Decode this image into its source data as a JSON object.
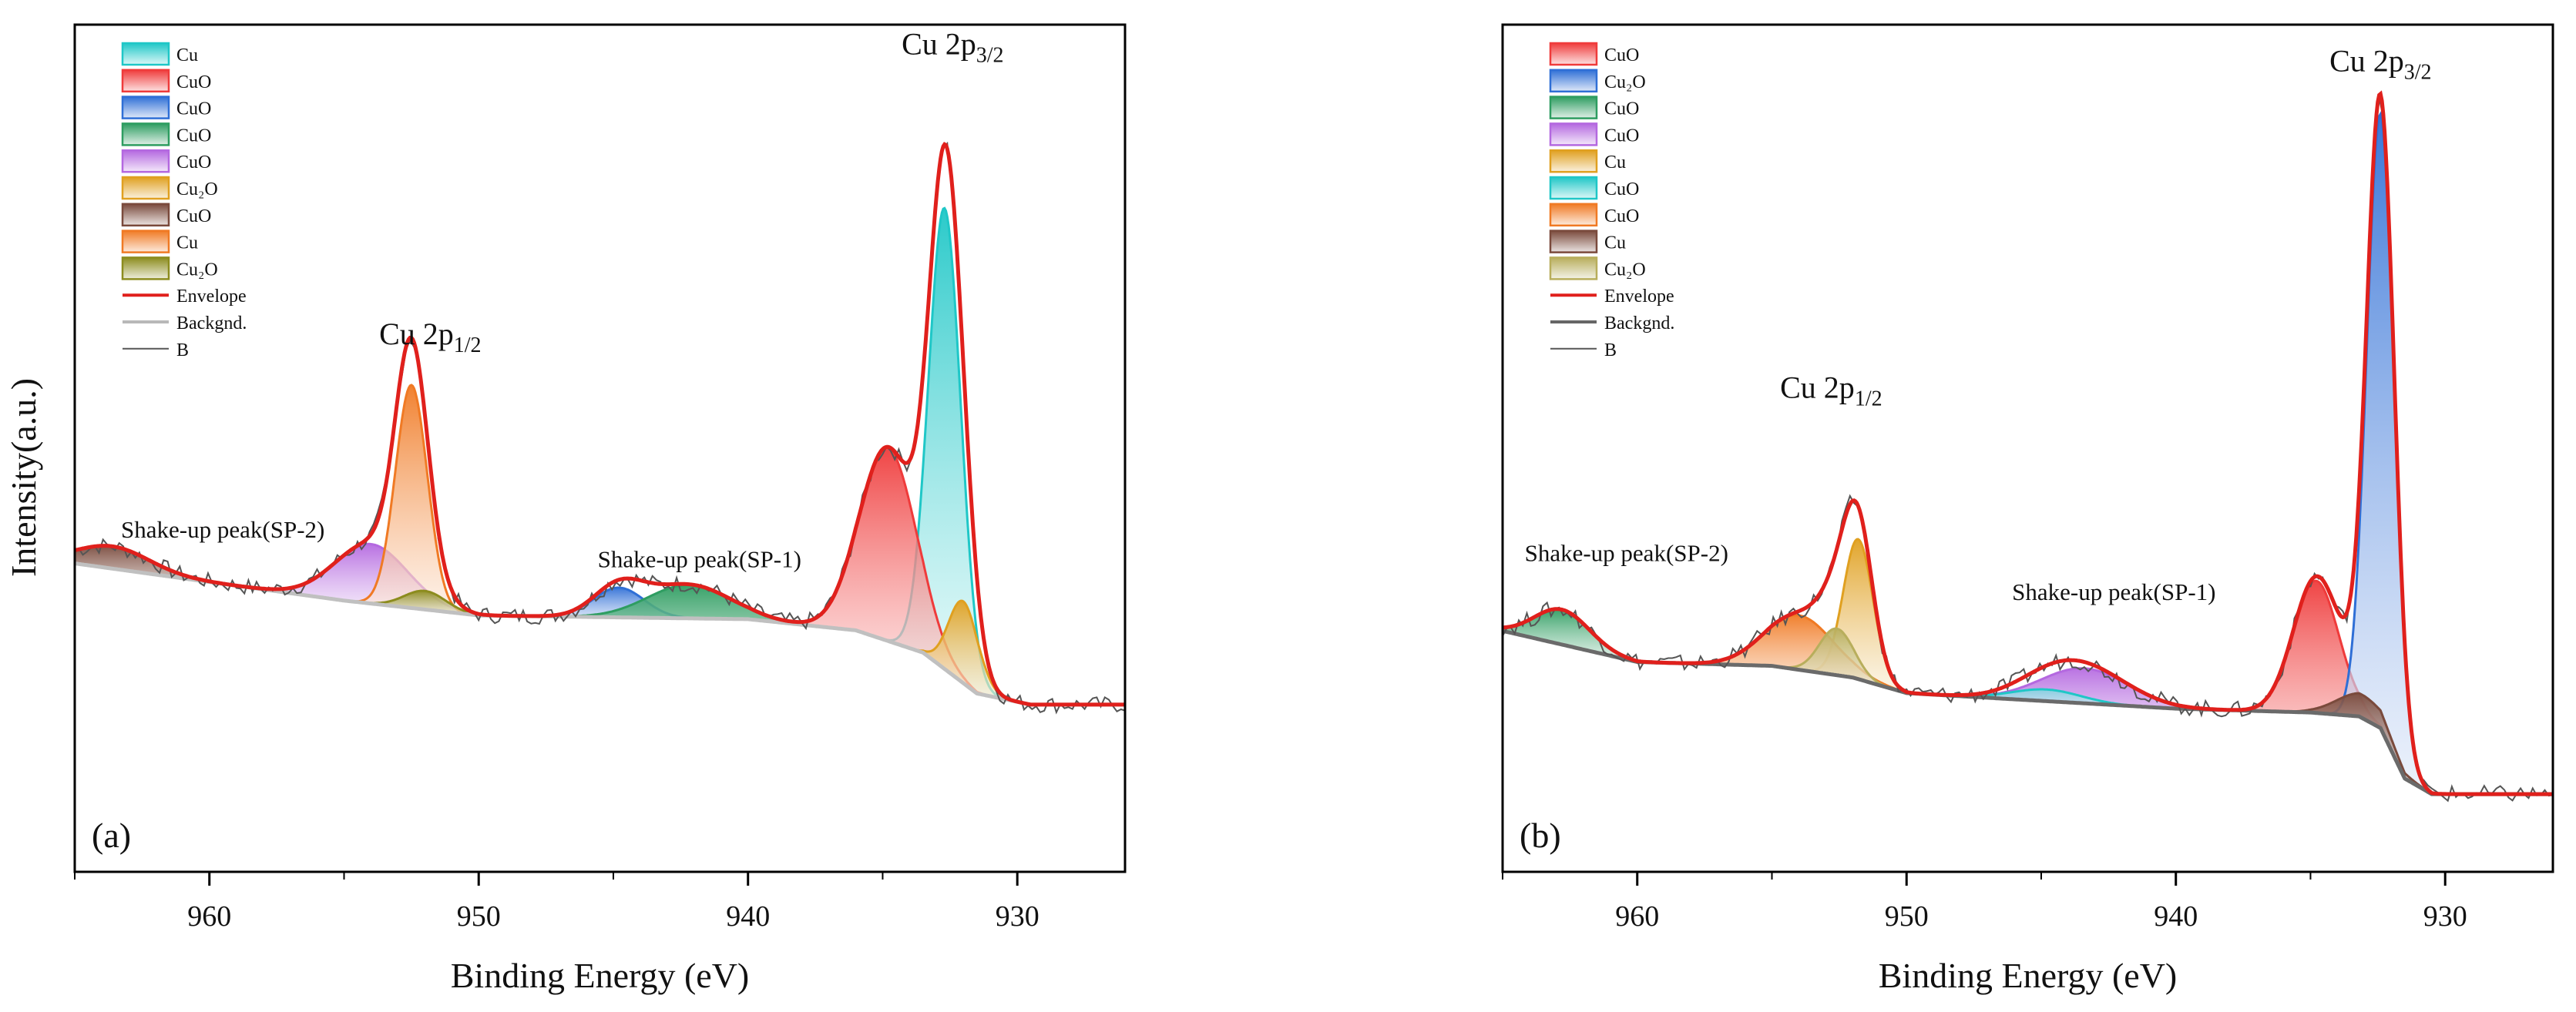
{
  "shared": {
    "y_axis_label": "Intensity(a.u.)",
    "x_axis_label": "Binding Energy (eV)"
  },
  "chart_data": [
    {
      "type": "area",
      "panel_label": "(a)",
      "xlabel": "Binding Energy (eV)",
      "ylabel": "Intensity(a.u.)",
      "xlim": [
        965,
        926
      ],
      "ylim": [
        -0.14,
        1.0
      ],
      "x_reversed": true,
      "xticks": [
        960,
        950,
        940,
        930
      ],
      "grid": false,
      "legend_position": "top-left",
      "annotations": [
        {
          "text": "Shake-up peak(SP-2)",
          "x": 959.5,
          "y": 0.31
        },
        {
          "text": "Cu 2p",
          "sub": "1/2",
          "x": 951.8,
          "y": 0.57
        },
        {
          "text": "Shake-up peak(SP-1)",
          "x": 941.8,
          "y": 0.27
        },
        {
          "text": "Cu 2p",
          "sub": "3/2",
          "x": 932.4,
          "y": 0.96
        }
      ],
      "background": {
        "points": [
          [
            965,
            0.275
          ],
          [
            958,
            0.24
          ],
          [
            955,
            0.225
          ],
          [
            950,
            0.205
          ],
          [
            940,
            0.2
          ],
          [
            936,
            0.185
          ],
          [
            933.5,
            0.155
          ],
          [
            931.5,
            0.1
          ],
          [
            929.5,
            0.085
          ],
          [
            926,
            0.085
          ]
        ]
      },
      "peaks": [
        {
          "name": "Cu",
          "center": 932.7,
          "height": 0.62,
          "fwhm": 1.4,
          "color": "#1fc7c7"
        },
        {
          "name": "CuO",
          "center": 934.8,
          "height": 0.26,
          "fwhm": 2.5,
          "color": "#ef3b3b"
        },
        {
          "name": "CuO",
          "center": 944.8,
          "height": 0.04,
          "fwhm": 2.2,
          "color": "#2f6fd6"
        },
        {
          "name": "CuO",
          "center": 942.2,
          "height": 0.045,
          "fwhm": 3.6,
          "color": "#2e9d61"
        },
        {
          "name": "CuO",
          "center": 954.0,
          "height": 0.08,
          "fwhm": 3.2,
          "color": "#b468e0"
        },
        {
          "name": "Cu₂O",
          "center": 932.0,
          "height": 0.11,
          "fwhm": 1.3,
          "color": "#e0a020"
        },
        {
          "name": "CuO",
          "center": 963.6,
          "height": 0.03,
          "fwhm": 3.2,
          "color": "#7a4a3c"
        },
        {
          "name": "Cu",
          "center": 952.5,
          "height": 0.3,
          "fwhm": 1.4,
          "color": "#f07a24"
        },
        {
          "name": "Cu₂O",
          "center": 952.0,
          "height": 0.025,
          "fwhm": 1.8,
          "color": "#8c8c1e"
        }
      ],
      "legend": [
        {
          "label": "Cu",
          "kind": "fill",
          "color": "#1fc7c7"
        },
        {
          "label": "CuO",
          "kind": "fill",
          "color": "#ef3b3b"
        },
        {
          "label": "CuO",
          "kind": "fill",
          "color": "#2f6fd6"
        },
        {
          "label": "CuO",
          "kind": "fill",
          "color": "#2e9d61"
        },
        {
          "label": "CuO",
          "kind": "fill",
          "color": "#b468e0"
        },
        {
          "label": "Cu₂O",
          "kind": "fill",
          "color": "#e0a020"
        },
        {
          "label": "CuO",
          "kind": "fill",
          "color": "#7a4a3c"
        },
        {
          "label": "Cu",
          "kind": "fill",
          "color": "#f07a24"
        },
        {
          "label": "Cu₂O",
          "kind": "fill",
          "color": "#8c8c1e"
        },
        {
          "label": "Envelope",
          "kind": "line",
          "color": "#e0201c"
        },
        {
          "label": "Backgnd.",
          "kind": "line",
          "color": "#b8b8b8"
        },
        {
          "label": "B",
          "kind": "line",
          "color": "#555555"
        }
      ],
      "colors": {
        "envelope": "#e0201c",
        "background": "#c0c0c0",
        "raw": "#555555"
      }
    },
    {
      "type": "area",
      "panel_label": "(b)",
      "xlabel": "Binding Energy (eV)",
      "ylabel": "Intensity(a.u.)",
      "xlim": [
        965,
        926
      ],
      "ylim": [
        -0.09,
        1.0
      ],
      "x_reversed": true,
      "xticks": [
        960,
        950,
        940,
        930
      ],
      "grid": false,
      "legend_position": "top-left",
      "annotations": [
        {
          "text": "Shake-up peak(SP-2)",
          "x": 960.4,
          "y": 0.31
        },
        {
          "text": "Cu 2p",
          "sub": "1/2",
          "x": 952.8,
          "y": 0.52
        },
        {
          "text": "Shake-up peak(SP-1)",
          "x": 942.3,
          "y": 0.26
        },
        {
          "text": "Cu 2p",
          "sub": "3/2",
          "x": 932.4,
          "y": 0.94
        }
      ],
      "background": {
        "points": [
          [
            965,
            0.22
          ],
          [
            960,
            0.18
          ],
          [
            955,
            0.175
          ],
          [
            952,
            0.16
          ],
          [
            950,
            0.14
          ],
          [
            945,
            0.13
          ],
          [
            940,
            0.12
          ],
          [
            935,
            0.115
          ],
          [
            933.2,
            0.11
          ],
          [
            932.4,
            0.095
          ],
          [
            931.5,
            0.03
          ],
          [
            930.5,
            0.01
          ],
          [
            926,
            0.01
          ]
        ]
      },
      "peaks": [
        {
          "name": "CuO",
          "center": 934.8,
          "height": 0.17,
          "fwhm": 2.0,
          "color": "#ef3b3b"
        },
        {
          "name": "Cu₂O",
          "center": 932.4,
          "height": 0.79,
          "fwhm": 1.2,
          "color": "#2f6fd6"
        },
        {
          "name": "CuO",
          "center": 962.8,
          "height": 0.045,
          "fwhm": 2.4,
          "color": "#2e9d61"
        },
        {
          "name": "CuO",
          "center": 943.4,
          "height": 0.045,
          "fwhm": 3.8,
          "color": "#b468e0"
        },
        {
          "name": "Cu",
          "center": 951.8,
          "height": 0.18,
          "fwhm": 1.3,
          "color": "#e0a020"
        },
        {
          "name": "CuO",
          "center": 944.8,
          "height": 0.015,
          "fwhm": 3.0,
          "color": "#1fc7c7"
        },
        {
          "name": "CuO",
          "center": 954.0,
          "height": 0.07,
          "fwhm": 3.0,
          "color": "#f07a24"
        },
        {
          "name": "Cu",
          "center": 933.1,
          "height": 0.03,
          "fwhm": 2.2,
          "color": "#7a4a3c"
        },
        {
          "name": "Cu₂O",
          "center": 952.6,
          "height": 0.06,
          "fwhm": 1.5,
          "color": "#b8ae5c"
        }
      ],
      "legend": [
        {
          "label": "CuO",
          "kind": "fill",
          "color": "#ef3b3b"
        },
        {
          "label": "Cu₂O",
          "kind": "fill",
          "color": "#2f6fd6"
        },
        {
          "label": "CuO",
          "kind": "fill",
          "color": "#2e9d61"
        },
        {
          "label": "CuO",
          "kind": "fill",
          "color": "#b468e0"
        },
        {
          "label": "Cu",
          "kind": "fill",
          "color": "#e0a020"
        },
        {
          "label": "CuO",
          "kind": "fill",
          "color": "#1fc7c7"
        },
        {
          "label": "CuO",
          "kind": "fill",
          "color": "#f07a24"
        },
        {
          "label": "Cu",
          "kind": "fill",
          "color": "#7a4a3c"
        },
        {
          "label": "Cu₂O",
          "kind": "fill",
          "color": "#b8ae5c"
        },
        {
          "label": "Envelope",
          "kind": "line",
          "color": "#e0201c"
        },
        {
          "label": "Backgnd.",
          "kind": "line",
          "color": "#666666"
        },
        {
          "label": "B",
          "kind": "line",
          "color": "#555555"
        }
      ],
      "colors": {
        "envelope": "#e0201c",
        "background": "#6a6a6a",
        "raw": "#555555"
      }
    }
  ]
}
